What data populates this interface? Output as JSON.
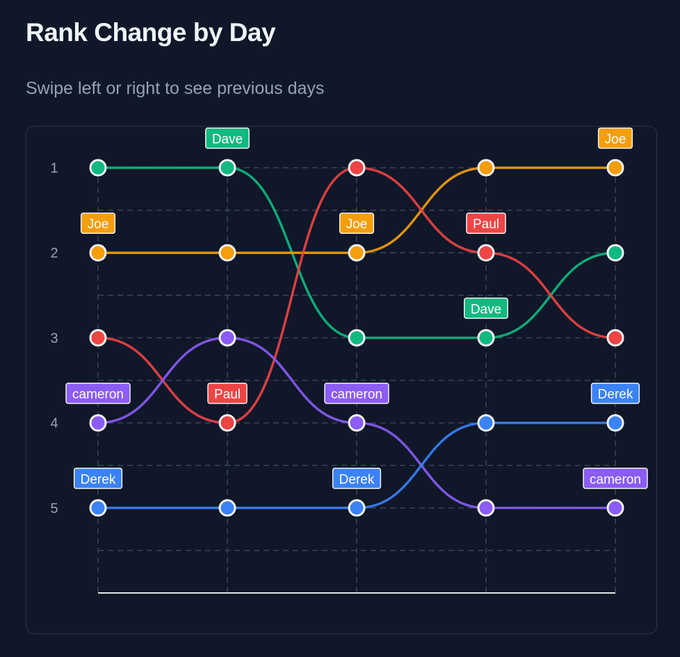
{
  "header": {
    "title": "Rank Change by Day",
    "subtitle": "Swipe left or right to see previous days"
  },
  "chart_data": {
    "type": "line",
    "subtype": "bump",
    "title": "Rank Change by Day",
    "subtitle": "Swipe left or right to see previous days",
    "x": [
      1,
      2,
      3,
      4,
      5
    ],
    "xlabel": "",
    "ylabel": "",
    "y_ticks": [
      1,
      2,
      3,
      4,
      5
    ],
    "ylim": [
      1,
      6
    ],
    "y_inverted": true,
    "grid": true,
    "legend": "none",
    "series": [
      {
        "name": "Dave",
        "color": "#10b981",
        "values": [
          1,
          1,
          3,
          3,
          2
        ],
        "labeled_points": [
          2,
          4
        ]
      },
      {
        "name": "Joe",
        "color": "#f59e0b",
        "values": [
          2,
          2,
          2,
          1,
          1
        ],
        "labeled_points": [
          1,
          3,
          5
        ]
      },
      {
        "name": "Paul",
        "color": "#ef4444",
        "values": [
          3,
          4,
          1,
          2,
          3
        ],
        "labeled_points": [
          2,
          4
        ]
      },
      {
        "name": "cameron",
        "color": "#8b5cf6",
        "values": [
          4,
          3,
          4,
          5,
          5
        ],
        "labeled_points": [
          1,
          3,
          5
        ]
      },
      {
        "name": "Derek",
        "color": "#3b82f6",
        "values": [
          5,
          5,
          5,
          4,
          4
        ],
        "labeled_points": [
          1,
          3,
          5
        ]
      }
    ]
  }
}
